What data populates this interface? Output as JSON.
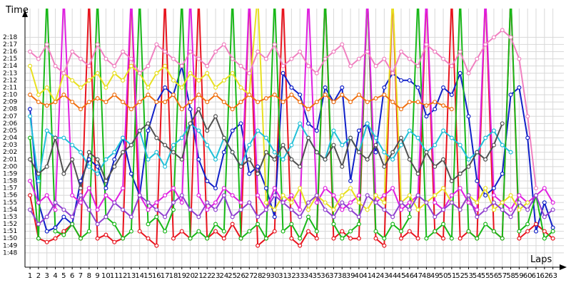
{
  "chart_data": {
    "type": "line",
    "x_label": "Laps",
    "y_label": "Time",
    "x": [
      1,
      2,
      3,
      4,
      5,
      6,
      7,
      8,
      9,
      10,
      11,
      12,
      13,
      14,
      15,
      16,
      17,
      18,
      19,
      20,
      21,
      22,
      23,
      24,
      25,
      26,
      27,
      28,
      29,
      30,
      31,
      32,
      33,
      34,
      35,
      36,
      37,
      38,
      39,
      40,
      41,
      42,
      43,
      44,
      45,
      46,
      47,
      48,
      49,
      50,
      51,
      52,
      53,
      54,
      55,
      56,
      57,
      58,
      59,
      60,
      61,
      62,
      63
    ],
    "xlim": [
      0.4,
      64.3
    ],
    "ylim": [
      106,
      142
    ],
    "grid": true,
    "yticks": [
      {
        "value": 108,
        "label": "1:48"
      },
      {
        "value": 109,
        "label": "1:49"
      },
      {
        "value": 110,
        "label": "1:50"
      },
      {
        "value": 111,
        "label": "1:51"
      },
      {
        "value": 112,
        "label": "1:52"
      },
      {
        "value": 113,
        "label": "1:53"
      },
      {
        "value": 114,
        "label": "1:54"
      },
      {
        "value": 115,
        "label": "1:55"
      },
      {
        "value": 116,
        "label": "1:56"
      },
      {
        "value": 117,
        "label": "1:57"
      },
      {
        "value": 118,
        "label": "1:58"
      },
      {
        "value": 119,
        "label": "1:59"
      },
      {
        "value": 120,
        "label": "2:00"
      },
      {
        "value": 121,
        "label": "2:01"
      },
      {
        "value": 122,
        "label": "2:02"
      },
      {
        "value": 123,
        "label": "2:03"
      },
      {
        "value": 124,
        "label": "2:04"
      },
      {
        "value": 125,
        "label": "2:05"
      },
      {
        "value": 126,
        "label": "2:06"
      },
      {
        "value": 127,
        "label": "2:07"
      },
      {
        "value": 128,
        "label": "2:08"
      },
      {
        "value": 129,
        "label": "2:09"
      },
      {
        "value": 130,
        "label": "2:10"
      },
      {
        "value": 131,
        "label": "2:11"
      },
      {
        "value": 132,
        "label": "2:12"
      },
      {
        "value": 133,
        "label": "2:13"
      },
      {
        "value": 134,
        "label": "2:14"
      },
      {
        "value": 135,
        "label": "2:15"
      },
      {
        "value": 136,
        "label": "2:16"
      },
      {
        "value": 137,
        "label": "2:17"
      },
      {
        "value": 138,
        "label": "2:18"
      }
    ],
    "series": [
      {
        "color": "#e8141e",
        "values": [
          116,
          110,
          109.5,
          110,
          111,
          112,
          110,
          144,
          110,
          110.5,
          109.5,
          110,
          144,
          111,
          110,
          109,
          144,
          110,
          111,
          110,
          144,
          110,
          111,
          110,
          112,
          110,
          144,
          109,
          110,
          111,
          144,
          110,
          109,
          111,
          110,
          144,
          110,
          111,
          110,
          110,
          144,
          110,
          109,
          144,
          110,
          111,
          110,
          144,
          111,
          110,
          144,
          110,
          111,
          110,
          144,
          111,
          110,
          144,
          110,
          111,
          112,
          111,
          110
        ]
      },
      {
        "color": "#1020c8",
        "values": [
          128,
          115,
          111,
          111.5,
          113,
          112,
          118,
          121,
          120,
          117,
          121,
          124,
          119,
          116,
          125,
          129,
          131,
          130,
          134,
          128,
          121,
          118,
          117,
          122,
          125,
          126,
          119,
          120,
          117,
          113,
          133,
          131,
          130,
          126,
          125,
          131,
          129,
          131,
          118,
          125,
          126,
          122,
          131,
          133,
          132,
          132,
          131,
          127,
          128,
          131,
          130,
          133,
          127,
          118,
          116,
          117,
          119,
          130,
          131,
          124,
          111,
          115,
          111.5
        ]
      },
      {
        "color": "#18b818",
        "values": [
          124,
          110,
          144,
          111,
          110.5,
          112,
          110,
          111,
          144,
          113,
          112,
          110,
          111,
          144,
          112,
          113,
          111,
          114,
          144,
          110,
          111,
          110,
          112,
          111,
          144,
          110,
          111,
          112,
          110,
          144,
          111,
          112,
          110,
          113,
          111,
          144,
          112,
          110,
          111,
          112,
          144,
          111,
          110,
          112,
          111,
          113,
          144,
          110,
          111,
          112,
          110,
          144,
          111,
          110,
          112,
          111,
          110,
          144,
          111,
          112,
          116,
          110,
          111
        ]
      },
      {
        "color": "#e020e0",
        "values": [
          118,
          115,
          116,
          114,
          144,
          116,
          115,
          117,
          114,
          116,
          115,
          117,
          144,
          116,
          114,
          115,
          116,
          117,
          115,
          144,
          116,
          114,
          115,
          117,
          116,
          115,
          144,
          116,
          114,
          117,
          115,
          116,
          114,
          144,
          115,
          117,
          116,
          114,
          115,
          116,
          144,
          115,
          116,
          117,
          114,
          115,
          116,
          144,
          115,
          114,
          116,
          117,
          115,
          114,
          144,
          116,
          115,
          114,
          116,
          115,
          116,
          117,
          115
        ]
      },
      {
        "color": "#e8e020",
        "values": [
          134,
          130,
          131,
          129,
          133,
          132,
          131,
          132,
          133,
          131,
          133,
          132,
          134,
          133,
          131,
          133,
          134,
          132,
          131,
          133,
          132,
          133,
          131,
          132,
          133,
          131,
          130,
          144,
          115,
          114,
          116,
          115,
          117,
          114,
          116,
          115,
          114,
          116,
          117,
          115,
          114,
          116,
          115,
          144,
          115,
          116,
          114,
          115,
          116,
          117,
          115,
          114,
          116,
          115,
          117,
          114,
          115,
          116,
          114,
          115,
          null,
          null,
          null
        ]
      },
      {
        "color": "#f07010",
        "values": [
          130,
          129,
          128.5,
          129,
          130,
          129,
          128,
          129,
          129.5,
          129,
          130,
          129,
          128,
          129,
          130,
          129,
          129,
          130,
          128,
          129,
          130,
          129,
          130,
          129,
          128,
          129,
          130,
          129,
          129.5,
          130,
          129,
          130,
          129,
          128,
          129,
          130,
          129,
          130,
          129,
          130,
          129,
          129.5,
          130,
          129,
          128,
          129,
          129,
          128.5,
          129,
          128.5,
          128,
          null,
          null,
          null,
          null,
          null,
          null,
          null,
          null,
          null,
          null,
          null,
          null
        ]
      },
      {
        "color": "#20c0d8",
        "values": [
          127,
          118,
          125,
          124,
          124,
          123,
          122,
          120,
          119,
          121,
          122,
          124,
          123,
          125,
          121,
          122,
          120,
          123,
          124,
          126,
          125,
          123,
          121,
          124,
          122,
          120,
          123,
          125,
          124,
          122,
          121,
          123,
          126,
          124,
          122,
          121,
          125,
          123,
          124,
          122,
          126,
          124,
          122,
          121,
          123,
          125,
          124,
          122,
          123,
          125,
          124,
          123,
          121,
          122,
          124,
          125,
          123,
          122,
          null,
          null,
          null,
          null,
          null
        ]
      },
      {
        "color": "#505050",
        "values": [
          121,
          119,
          120,
          124,
          119,
          121,
          117,
          122,
          121,
          118,
          120,
          122,
          123,
          125,
          126,
          124,
          123,
          122,
          121,
          126,
          128,
          125,
          127,
          124,
          122,
          120,
          121,
          119,
          122,
          121,
          123,
          121,
          120,
          124,
          122,
          121,
          123,
          120,
          124,
          122,
          121,
          123,
          120,
          122,
          124,
          121,
          119,
          122,
          120,
          121,
          118,
          119,
          120,
          122,
          121,
          123,
          126,
          null,
          null,
          null,
          null,
          null,
          null
        ]
      },
      {
        "color": "#f080c0",
        "values": [
          136,
          135,
          137,
          134,
          133,
          136,
          135,
          134,
          137,
          135,
          134,
          136,
          135,
          133,
          134,
          137,
          136,
          135,
          134,
          136,
          135,
          134,
          136,
          137,
          135,
          134,
          133,
          136,
          135,
          137,
          134,
          135,
          136,
          134,
          133,
          135,
          136,
          137,
          134,
          135,
          136,
          134,
          135,
          133,
          136,
          135,
          134,
          137,
          136,
          135,
          134,
          136,
          133,
          135,
          137,
          138,
          139,
          138,
          135,
          127,
          117,
          null,
          null
        ]
      },
      {
        "color": "#9040d0",
        "values": [
          114,
          112,
          113,
          115,
          114,
          113,
          116,
          114,
          112,
          113,
          115,
          114,
          113,
          116,
          115,
          114,
          113,
          115,
          116,
          114,
          113,
          115,
          114,
          116,
          113,
          114,
          115,
          113,
          114,
          116,
          115,
          114,
          113,
          115,
          116,
          114,
          113,
          115,
          114,
          113,
          116,
          115,
          114,
          113,
          115,
          114,
          116,
          115,
          113,
          114,
          115,
          114,
          116,
          113,
          114,
          115,
          114,
          113,
          115,
          114,
          116,
          113,
          114
        ]
      }
    ]
  }
}
